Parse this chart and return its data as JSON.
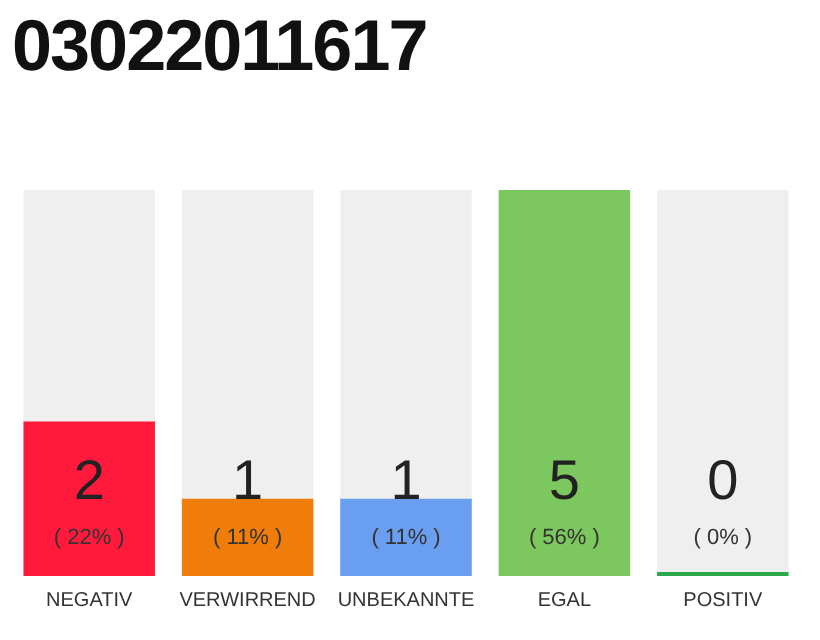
{
  "chart_data": {
    "type": "bar",
    "title": "03022011617",
    "categories": [
      "NEGATIV",
      "VERWIRREND",
      "UNBEKANNTE",
      "EGAL",
      "POSITIV"
    ],
    "values": [
      2,
      1,
      1,
      5,
      0
    ],
    "colors": [
      "#ff1a3c",
      "#f07d0a",
      "#6a9ef0",
      "#7dc85e",
      "#2aa84a"
    ],
    "value_labels": [
      "2",
      "1",
      "1",
      "5",
      "0"
    ],
    "annotations": [
      "( 22% )",
      "( 11% )",
      "( 11% )",
      "( 56% )",
      "( 0% )"
    ],
    "tick_labels": "x",
    "grid": false,
    "legend": false
  }
}
